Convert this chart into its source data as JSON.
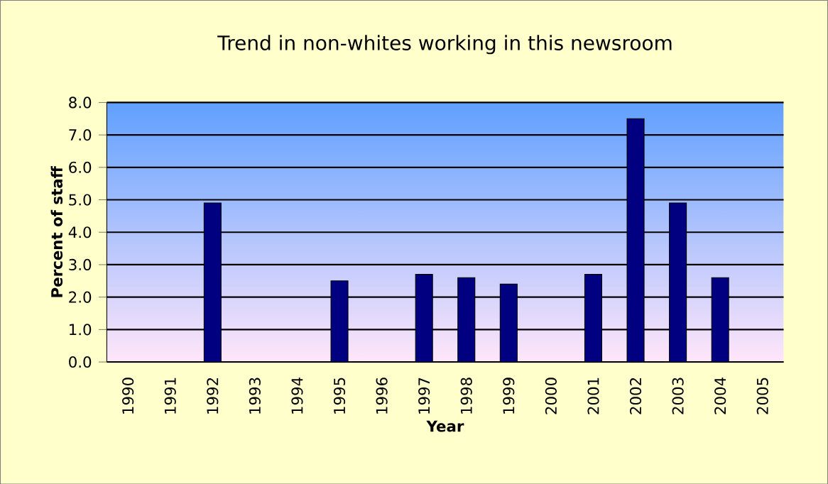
{
  "chart_data": {
    "type": "bar",
    "title": "Trend in non-whites working in this newsroom",
    "xlabel": "Year",
    "ylabel": "Percent of staff",
    "categories": [
      "1990",
      "1991",
      "1992",
      "1993",
      "1994",
      "1995",
      "1996",
      "1997",
      "1998",
      "1999",
      "2000",
      "2001",
      "2002",
      "2003",
      "2004",
      "2005"
    ],
    "values": [
      null,
      null,
      4.9,
      null,
      null,
      2.5,
      null,
      2.7,
      2.6,
      2.4,
      null,
      2.7,
      7.5,
      4.9,
      2.6,
      null
    ],
    "color": "#000080",
    "ylim": [
      0,
      8
    ],
    "yticks": [
      {
        "value": 0,
        "label": "0.0"
      },
      {
        "value": 1,
        "label": "1.0"
      },
      {
        "value": 2,
        "label": "2.0"
      },
      {
        "value": 3,
        "label": "3.0"
      },
      {
        "value": 4,
        "label": "4.0"
      },
      {
        "value": 5,
        "label": "5.0"
      },
      {
        "value": 6,
        "label": "6.0"
      },
      {
        "value": 7,
        "label": "7.0"
      },
      {
        "value": 8,
        "label": "8.0"
      }
    ],
    "grid": "y"
  }
}
